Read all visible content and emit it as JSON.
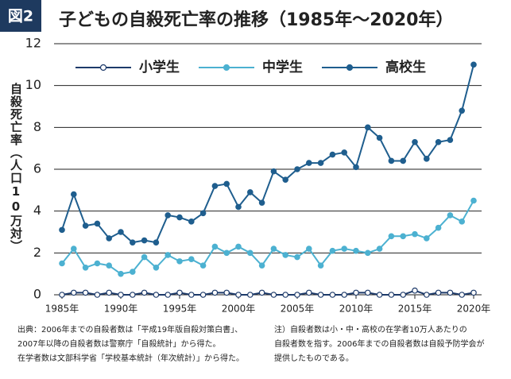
{
  "chart_data": {
    "type": "line",
    "badge": "図2",
    "title": "子どもの自殺死亡率の推移（1985年〜2020年）",
    "y_label": "自殺死亡率（人口10万対）",
    "x": [
      1985,
      1986,
      1987,
      1988,
      1989,
      1990,
      1991,
      1992,
      1993,
      1994,
      1995,
      1996,
      1997,
      1998,
      1999,
      2000,
      2001,
      2002,
      2003,
      2004,
      2005,
      2006,
      2007,
      2008,
      2009,
      2010,
      2011,
      2012,
      2013,
      2014,
      2015,
      2016,
      2017,
      2018,
      2019,
      2020
    ],
    "series": [
      {
        "name": "小学生",
        "color": "#1d3a6a",
        "marker_fill": "#ffffff",
        "values": [
          0.0,
          0.1,
          0.1,
          0.0,
          0.1,
          0.0,
          0.0,
          0.1,
          0.0,
          0.0,
          0.1,
          0.0,
          0.0,
          0.1,
          0.1,
          0.0,
          0.0,
          0.1,
          0.0,
          0.0,
          0.0,
          0.1,
          0.0,
          0.0,
          0.0,
          0.1,
          0.1,
          0.0,
          0.0,
          0.0,
          0.2,
          0.0,
          0.1,
          0.1,
          0.0,
          0.1
        ]
      },
      {
        "name": "中学生",
        "color": "#4cb1d1",
        "marker_fill": "#4cb1d1",
        "values": [
          1.5,
          2.2,
          1.3,
          1.5,
          1.4,
          1.0,
          1.1,
          1.8,
          1.3,
          1.9,
          1.6,
          1.7,
          1.4,
          2.3,
          2.0,
          2.3,
          2.0,
          1.4,
          2.2,
          1.9,
          1.8,
          2.2,
          1.4,
          2.1,
          2.2,
          2.1,
          2.0,
          2.2,
          2.8,
          2.8,
          2.9,
          2.7,
          3.2,
          3.8,
          3.5,
          4.5
        ]
      },
      {
        "name": "高校生",
        "color": "#1f5e8e",
        "marker_fill": "#1f5e8e",
        "values": [
          3.1,
          4.8,
          3.3,
          3.4,
          2.7,
          3.0,
          2.5,
          2.6,
          2.5,
          3.8,
          3.7,
          3.5,
          3.9,
          5.2,
          5.3,
          4.2,
          4.9,
          4.4,
          5.9,
          5.5,
          6.0,
          6.3,
          6.3,
          6.7,
          6.8,
          6.1,
          8.0,
          7.5,
          6.4,
          6.4,
          7.3,
          6.5,
          7.3,
          7.4,
          8.8,
          11.0
        ]
      }
    ],
    "xlim": [
      1985,
      2020
    ],
    "xticks": [
      {
        "value": 1985,
        "label": "1985年"
      },
      {
        "value": 1990,
        "label": "1990年"
      },
      {
        "value": 1995,
        "label": "1995年"
      },
      {
        "value": 2000,
        "label": "2000年"
      },
      {
        "value": 2005,
        "label": "2005年"
      },
      {
        "value": 2010,
        "label": "2010年"
      },
      {
        "value": 2015,
        "label": "2015年"
      },
      {
        "value": 2020,
        "label": "2020年"
      }
    ],
    "ylim": [
      0,
      12
    ],
    "yticks": [
      0,
      2,
      4,
      6,
      8,
      10,
      12
    ],
    "grid": true,
    "legend": "top",
    "notes": [
      [
        "出典：2006年までの自殺者数は「平成19年版自殺対策白書」、",
        "2007年以降の自殺者数は警察庁「自殺統計」から得た。",
        "在学者数は文部科学省「学校基本統計（年次統計）」から得た。"
      ],
      [
        "注）自殺者数は小・中・高校の在学者10万人あたりの",
        "自殺者数を指す。2006年までの自殺者数は自殺予防学会が",
        "提供したものである。"
      ]
    ]
  }
}
